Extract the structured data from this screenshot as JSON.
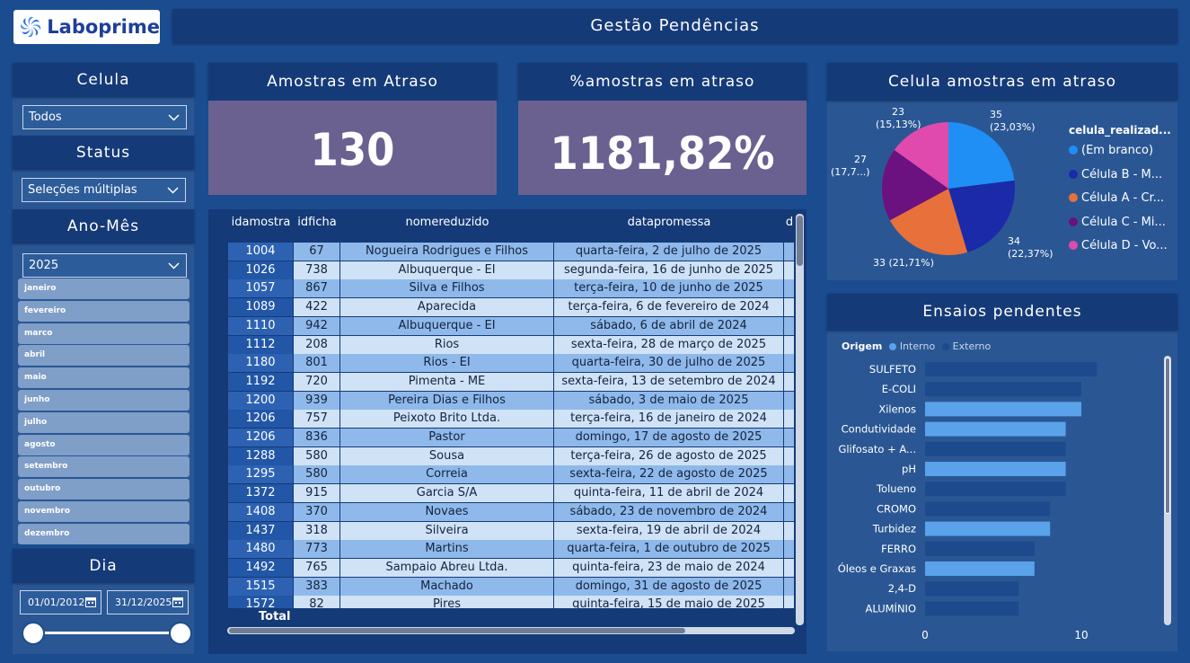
{
  "header": {
    "logo_text": "Laboprime",
    "title": "Gestão Pendências"
  },
  "filters": {
    "celula": {
      "title": "Celula",
      "value": "Todos"
    },
    "status": {
      "title": "Status",
      "value": "Seleções múltiplas"
    },
    "ano_mes": {
      "title": "Ano-Mês",
      "value": "2025",
      "months": [
        "janeiro",
        "fevereiro",
        "marco",
        "abril",
        "maio",
        "junho",
        "julho",
        "agosto",
        "setembro",
        "outubro",
        "novembro",
        "dezembro"
      ]
    },
    "dia": {
      "title": "Dia",
      "start": "01/01/2012",
      "end": "31/12/2025"
    }
  },
  "kpis": {
    "amostras_atraso": {
      "title": "Amostras em Atraso",
      "value": "130"
    },
    "pct_atraso": {
      "title": "%amostras em atraso",
      "value": "1181,82%"
    }
  },
  "table": {
    "columns": [
      "idamostra",
      "idficha",
      "nomereduzido",
      "datapromessa",
      "d"
    ],
    "rows": [
      [
        "1004",
        "67",
        "Nogueira Rodrigues e Filhos",
        "quarta-feira, 2 de julho de 2025"
      ],
      [
        "1026",
        "738",
        "Albuquerque - EI",
        "segunda-feira, 16 de junho de 2025"
      ],
      [
        "1057",
        "867",
        "Silva e Filhos",
        "terça-feira, 10 de junho de 2025"
      ],
      [
        "1089",
        "422",
        "Aparecida",
        "terça-feira, 6 de fevereiro de 2024"
      ],
      [
        "1110",
        "942",
        "Albuquerque - EI",
        "sábado, 6 de abril de 2024"
      ],
      [
        "1112",
        "208",
        "Rios",
        "sexta-feira, 28 de março de 2025"
      ],
      [
        "1180",
        "801",
        "Rios - EI",
        "quarta-feira, 30 de julho de 2025"
      ],
      [
        "1192",
        "720",
        "Pimenta - ME",
        "sexta-feira, 13 de setembro de 2024"
      ],
      [
        "1200",
        "939",
        "Pereira Dias e Filhos",
        "sábado, 3 de maio de 2025"
      ],
      [
        "1206",
        "757",
        "Peixoto Brito Ltda.",
        "terça-feira, 16 de janeiro de 2024"
      ],
      [
        "1206",
        "836",
        "Pastor",
        "domingo, 17 de agosto de 2025"
      ],
      [
        "1288",
        "580",
        "Sousa",
        "terça-feira, 26 de agosto de 2025"
      ],
      [
        "1295",
        "580",
        "Correia",
        "sexta-feira, 22 de agosto de 2025"
      ],
      [
        "1372",
        "915",
        "Garcia S/A",
        "quinta-feira, 11 de abril de 2024"
      ],
      [
        "1408",
        "370",
        "Novaes",
        "sábado, 23 de novembro de 2024"
      ],
      [
        "1437",
        "318",
        "Silveira",
        "sexta-feira, 19 de abril de 2024"
      ],
      [
        "1480",
        "773",
        "Martins",
        "quarta-feira, 1 de outubro de 2025"
      ],
      [
        "1492",
        "765",
        "Sampaio Abreu Ltda.",
        "quinta-feira, 23 de maio de 2024"
      ],
      [
        "1515",
        "383",
        "Machado",
        "domingo, 31 de agosto de 2025"
      ],
      [
        "1572",
        "82",
        "Pires",
        "quinta-feira, 15 de maio de 2025"
      ]
    ],
    "total_label": "Total"
  },
  "pie": {
    "title": "Celula amostras em atraso",
    "legend_title": "celula_realizad...",
    "slices": [
      {
        "name": "(Em branco)",
        "value": 35,
        "label1": "35",
        "label2": "(23,03%)",
        "color": "#1f8ef5"
      },
      {
        "name": "Célula B - M...",
        "value": 34,
        "label1": "34",
        "label2": "(22,37%)",
        "color": "#1a2aa8"
      },
      {
        "name": "Célula A - Cr...",
        "value": 33,
        "label1": "33 (21,71%)",
        "label2": "",
        "color": "#e8703a"
      },
      {
        "name": "Célula C - Mi...",
        "value": 27,
        "label1": "27",
        "label2": "(17,7...)",
        "color": "#6b1180"
      },
      {
        "name": "Célula D - Vo...",
        "value": 23,
        "label1": "23",
        "label2": "(15,13%)",
        "color": "#e04aac"
      }
    ]
  },
  "chart_data": {
    "type": "bar",
    "title": "Ensaios pendentes",
    "legend_title": "Origem",
    "series_names": [
      "Interno",
      "Externo"
    ],
    "series_colors": [
      "#5aa2ea",
      "#1c4a8c"
    ],
    "categories": [
      "SULFETO",
      "E-COLI",
      "Xilenos",
      "Condutividade",
      "Glifosato + A...",
      "pH",
      "Tolueno",
      "CROMO",
      "Turbidez",
      "FERRO",
      "Óleos e Graxas",
      "2,4-D",
      "ALUMÍNIO"
    ],
    "values": [
      11,
      10,
      10,
      9,
      9,
      9,
      9,
      8,
      8,
      7,
      7,
      6,
      6
    ],
    "origin": [
      "Externo",
      "Externo",
      "Interno",
      "Interno",
      "Externo",
      "Interno",
      "Externo",
      "Externo",
      "Interno",
      "Externo",
      "Interno",
      "Externo",
      "Externo"
    ],
    "xticks": [
      "0",
      "10"
    ],
    "xlim": [
      0,
      14.5
    ]
  }
}
